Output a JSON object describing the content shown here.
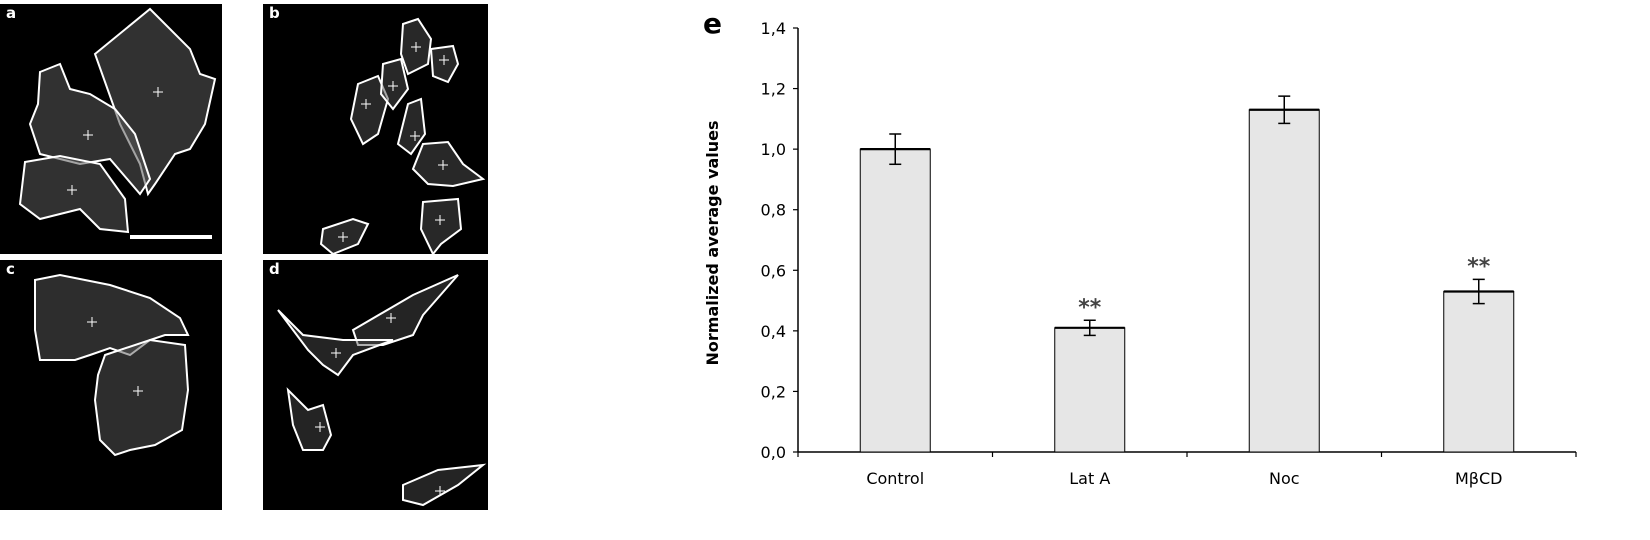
{
  "panels": [
    {
      "label": "a"
    },
    {
      "label": "b"
    },
    {
      "label": "c"
    },
    {
      "label": "d"
    }
  ],
  "colors": {
    "background": "#000000",
    "outline": "#ffffff",
    "bar_fill": "#e6e6e6",
    "bar_stroke": "#000000"
  },
  "chart_data": {
    "type": "bar",
    "panel_label": "e",
    "title": "",
    "xlabel": "",
    "ylabel": "Normalized average values",
    "categories": [
      "Control",
      "Lat A",
      "Noc",
      "MβCD"
    ],
    "values": [
      1.0,
      0.41,
      1.13,
      0.53
    ],
    "errors": [
      0.05,
      0.025,
      0.045,
      0.04
    ],
    "annotations": [
      "",
      "**",
      "",
      "**"
    ],
    "ylim": [
      0,
      1.4
    ],
    "yticks": [
      "0,0",
      "0,2",
      "0,4",
      "0,6",
      "0,8",
      "1,0",
      "1,2",
      "1,4"
    ],
    "grid": false,
    "legend": "none"
  }
}
